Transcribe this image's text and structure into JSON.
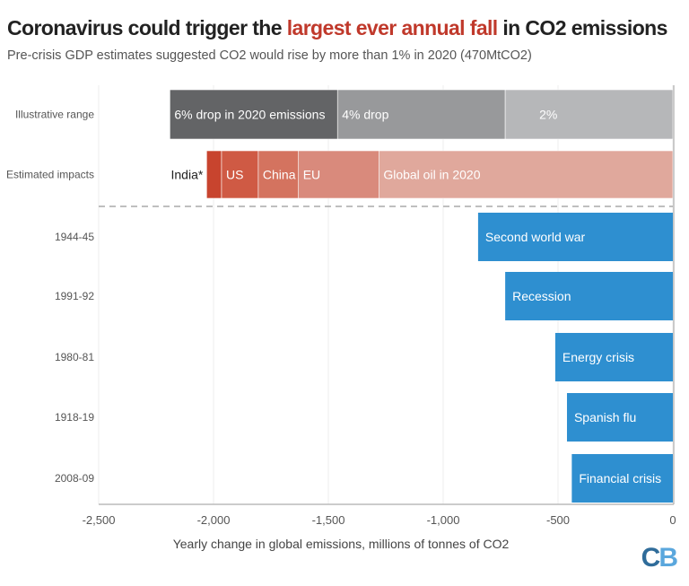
{
  "title": {
    "part1": "Coronavirus could trigger the ",
    "highlight": "largest ever annual fall",
    "part2": " in CO2 emissions",
    "highlight_color": "#c0392b"
  },
  "subtitle": "Pre-crisis GDP estimates suggested CO2 would rise by more than 1% in 2020 (470MtCO2)",
  "logo": "CB",
  "chart_data": {
    "type": "bar",
    "orientation": "horizontal",
    "xlabel": "Yearly change in global emissions, millions of tonnes of CO2",
    "xlim": [
      -2500,
      0
    ],
    "xticks": [
      -2500,
      -2000,
      -1500,
      -1000,
      -500,
      0
    ],
    "xtick_labels": [
      "-2,500",
      "-2,000",
      "-1,500",
      "-1,000",
      "-500",
      "0"
    ],
    "grid": true,
    "stacked_rows": [
      {
        "category": "Illustrative range",
        "segments": [
          {
            "label": "6% drop in 2020 emissions",
            "from": -2190,
            "to": -1460,
            "color": "#636466",
            "text_color": "#ffffff"
          },
          {
            "label": "4% drop",
            "from": -1460,
            "to": -730,
            "color": "#98999b",
            "text_color": "#ffffff"
          },
          {
            "label": "2%",
            "from": -730,
            "to": 0,
            "color": "#b6b7b9",
            "text_color": "#ffffff"
          }
        ]
      },
      {
        "category": "Estimated impacts",
        "segments": [
          {
            "label": "India*",
            "from": -2030,
            "to": -1965,
            "color": "#c8442e",
            "text_color": "#222222",
            "label_outside": true
          },
          {
            "label": "US",
            "from": -1965,
            "to": -1805,
            "color": "#cf5a44",
            "text_color": "#ffffff"
          },
          {
            "label": "China",
            "from": -1805,
            "to": -1630,
            "color": "#d4735f",
            "text_color": "#ffffff"
          },
          {
            "label": "EU",
            "from": -1630,
            "to": -1280,
            "color": "#d98a7c",
            "text_color": "#ffffff"
          },
          {
            "label": "Global oil in 2020",
            "from": -1280,
            "to": 0,
            "color": "#e0a89c",
            "text_color": "#ffffff"
          }
        ]
      }
    ],
    "series": [
      {
        "category": "1944-45",
        "label": "Second world war",
        "value": -848
      },
      {
        "category": "1991-92",
        "label": "Recession",
        "value": -730
      },
      {
        "category": "1980-81",
        "label": "Energy crisis",
        "value": -512
      },
      {
        "category": "1918-19",
        "label": "Spanish flu",
        "value": -461
      },
      {
        "category": "2008-09",
        "label": "Financial crisis",
        "value": -440
      }
    ],
    "series_color": "#2e8fd0"
  }
}
